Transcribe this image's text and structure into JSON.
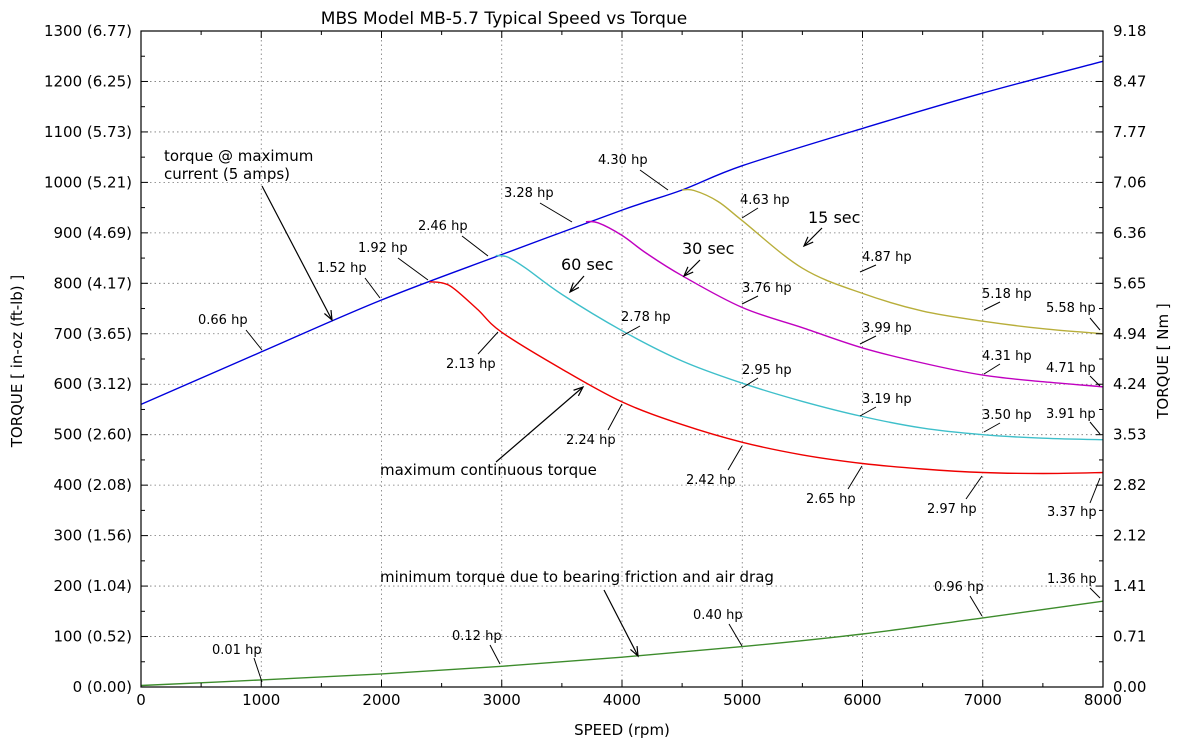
{
  "chart_data": {
    "type": "line",
    "title": "MBS Model MB-5.7 Typical Speed vs Torque",
    "xlabel": "SPEED (rpm)",
    "ylabel": "TORQUE [ in-oz (ft-lb) ]",
    "y2label": "TORQUE [ Nm ]",
    "xlim": [
      0,
      8000
    ],
    "ylim": [
      0,
      1300
    ],
    "grid": true,
    "x_ticks": [
      0,
      1000,
      2000,
      3000,
      4000,
      5000,
      6000,
      7000,
      8000
    ],
    "x_tick_labels": [
      "0",
      "1000",
      "2000",
      "3000",
      "4000",
      "5000",
      "6000",
      "7000",
      "8000"
    ],
    "y_ticks": [
      0,
      100,
      200,
      300,
      400,
      500,
      600,
      700,
      800,
      900,
      1000,
      1100,
      1200,
      1300
    ],
    "y_tick_labels": [
      "0 (0.00)",
      "100 (0.52)",
      "200 (1.04)",
      "300 (1.56)",
      "400 (2.08)",
      "500 (2.60)",
      "600 (3.12)",
      "700 (3.65)",
      "800 (4.17)",
      "900 (4.69)",
      "1000 (5.21)",
      "1100 (5.73)",
      "1200 (6.25)",
      "1300 (6.77)"
    ],
    "y2_tick_labels": [
      "0.00",
      "0.71",
      "1.41",
      "2.12",
      "2.82",
      "3.53",
      "4.24",
      "4.94",
      "5.65",
      "6.36",
      "7.06",
      "7.77",
      "8.47",
      "9.18"
    ],
    "series": [
      {
        "color": "#0000dd",
        "x": [
          0,
          1000,
          2000,
          3000,
          4000,
          4500,
          5000,
          6000,
          7000,
          8000
        ],
        "y": [
          560,
          664,
          767,
          857,
          945,
          985,
          1033,
          1107,
          1177,
          1240
        ]
      },
      {
        "color": "#b8ae3a",
        "x": [
          4500,
          4600,
          4800,
          5000,
          5500,
          6000,
          6500,
          7000,
          7500,
          8000
        ],
        "y": [
          985,
          984,
          962,
          924,
          830,
          780,
          745,
          725,
          710,
          700
        ]
      },
      {
        "color": "#c000c0",
        "x": [
          3700,
          3800,
          4000,
          4200,
          4500,
          5000,
          5500,
          6000,
          6500,
          7000,
          7500,
          8000
        ],
        "y": [
          922,
          920,
          895,
          860,
          815,
          752,
          712,
          672,
          642,
          618,
          605,
          595
        ]
      },
      {
        "color": "#3ebfca",
        "x": [
          2950,
          3050,
          3200,
          3500,
          4000,
          4500,
          5000,
          5500,
          6000,
          6500,
          7000,
          7500,
          8000
        ],
        "y": [
          855,
          852,
          830,
          778,
          706,
          646,
          602,
          566,
          536,
          513,
          500,
          493,
          490
        ]
      },
      {
        "color": "#ee0000",
        "x": [
          2400,
          2500,
          2600,
          2800,
          3000,
          3500,
          4000,
          4500,
          5000,
          5500,
          6000,
          6500,
          7000,
          7500,
          8000
        ],
        "y": [
          803,
          801,
          790,
          748,
          703,
          630,
          565,
          520,
          485,
          460,
          443,
          432,
          425,
          423,
          425
        ]
      },
      {
        "color": "#3d8c2c",
        "x": [
          0,
          1000,
          2000,
          3000,
          4000,
          5000,
          6000,
          7000,
          8000
        ],
        "y": [
          3,
          14,
          26,
          41,
          59,
          80,
          105,
          137,
          170
        ]
      }
    ],
    "hp_labels": [
      "0.01 hp",
      "0.12 hp",
      "0.40 hp",
      "0.96 hp",
      "1.36 hp",
      "0.66 hp",
      "1.52 hp",
      "1.92 hp",
      "2.46 hp",
      "3.28 hp",
      "4.30 hp",
      "4.63 hp",
      "4.87 hp",
      "5.18 hp",
      "5.58 hp",
      "3.76 hp",
      "3.99 hp",
      "4.31 hp",
      "4.71 hp",
      "2.78 hp",
      "2.95 hp",
      "3.19 hp",
      "3.50 hp",
      "3.91 hp",
      "2.13 hp",
      "2.24 hp",
      "2.42 hp",
      "2.65 hp",
      "2.97 hp",
      "3.37 hp"
    ],
    "annotations": {
      "max_current": [
        "torque @ maximum",
        "current (5 amps)"
      ],
      "sec15": "15 sec",
      "sec30": "30 sec",
      "sec60": "60 sec",
      "continuous": "maximum continuous torque",
      "minimum": "minimum torque due to bearing friction and air drag"
    }
  }
}
